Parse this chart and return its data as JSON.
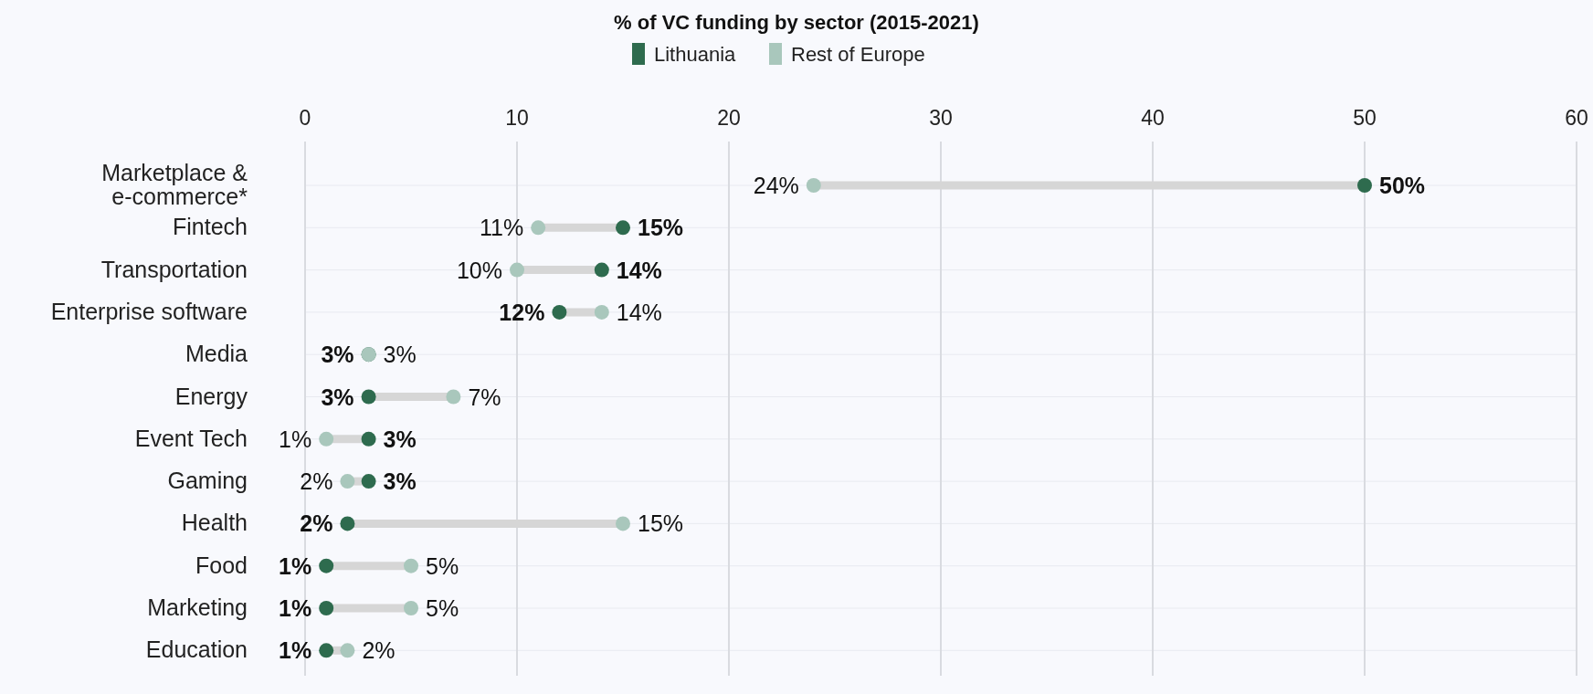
{
  "chart_data": {
    "type": "scatter",
    "orientation": "horizontal",
    "title": "% of VC funding by sector (2015-2021)",
    "categories": [
      "Marketplace & e-commerce*",
      "Fintech",
      "Transportation",
      "Enterprise software",
      "Media",
      "Energy",
      "Event Tech",
      "Gaming",
      "Health",
      "Food",
      "Marketing",
      "Education"
    ],
    "series": [
      {
        "name": "Lithuania",
        "color": "#2e6b4e",
        "values": [
          50,
          15,
          14,
          12,
          3,
          3,
          3,
          3,
          2,
          1,
          1,
          1
        ],
        "value_labels": [
          "50%",
          "15%",
          "14%",
          "12%",
          "3%",
          "3%",
          "3%",
          "3%",
          "2%",
          "1%",
          "1%",
          "1%"
        ]
      },
      {
        "name": "Rest of Europe",
        "color": "#a9c7bc",
        "values": [
          24,
          11,
          10,
          14,
          3,
          7,
          1,
          2,
          15,
          5,
          5,
          2
        ],
        "value_labels": [
          "24%",
          "11%",
          "10%",
          "14%",
          "3%",
          "7%",
          "1%",
          "2%",
          "15%",
          "5%",
          "5%",
          "2%"
        ]
      }
    ],
    "xlim": [
      0,
      60
    ],
    "xticks": [
      0,
      10,
      20,
      30,
      40,
      50,
      60
    ],
    "grid": true,
    "legend": "top",
    "marker": "circle"
  }
}
